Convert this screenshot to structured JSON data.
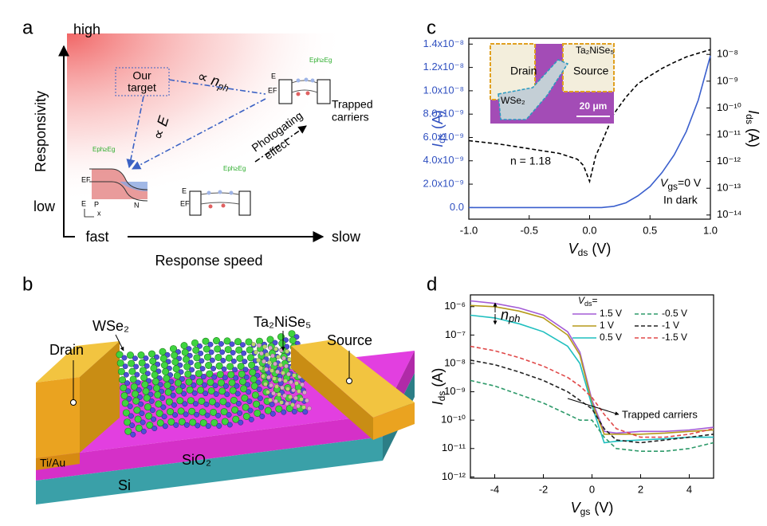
{
  "panel_a": {
    "label": "a",
    "y_high": "high",
    "y_low": "low",
    "y_title": "Responsivity",
    "x_fast": "fast",
    "x_slow": "slow",
    "x_title": "Response speed",
    "target": [
      "Our",
      "target"
    ],
    "n_ph": {
      "pre": "∝ ",
      "symbol": "n",
      "sub": "ph"
    },
    "field": {
      "pre": "∝ ",
      "symbol": "E"
    },
    "photogating": [
      "Photogating",
      "effect"
    ],
    "trapped": [
      "Trapped",
      "carriers"
    ],
    "photon": [
      "Eph≥Eg",
      "Eph≥Eg",
      "Eph≥Eg"
    ],
    "band_E": [
      "E",
      "E",
      "E"
    ],
    "band_EF": [
      "EF",
      "EF",
      "EF"
    ],
    "pn": [
      "P",
      "N"
    ],
    "mini_x": "x"
  },
  "panel_b": {
    "label": "b",
    "drain": "Drain",
    "source": "Source",
    "wse2": "WSe₂",
    "tns": "Ta₂NiSe₅",
    "electrode": "Ti/Au",
    "oxide": "SiO₂",
    "substrate": "Si"
  },
  "chart_data": [
    {
      "type": "line",
      "panel": "c",
      "xlabel": {
        "symbol": "V",
        "sub": "ds",
        "unit": " (V)"
      },
      "ylabel": {
        "symbol": "I",
        "sub": "ds",
        "unit": " (A)"
      },
      "ycolor": "#3050c0",
      "y2label": {
        "symbol": "I",
        "sub": "ds",
        "unit": " (A)"
      },
      "x": [
        -1,
        -0.75,
        -0.5,
        -0.25,
        -0.1,
        -0.05,
        0,
        0.05,
        0.1,
        0.2,
        0.3,
        0.4,
        0.5,
        0.6,
        0.7,
        0.8,
        0.9,
        1.0
      ],
      "xlim": [
        -1,
        1
      ],
      "xticks": [
        {
          "value": -1,
          "label": "-1.0"
        },
        -0.5,
        {
          "value": 0,
          "label": "0.0"
        },
        0.5,
        {
          "value": 1,
          "label": "1.0"
        }
      ],
      "ylim": [
        -1e-09,
        1.45e-08
      ],
      "yticks": [
        {
          "value": 0,
          "label": "0.0"
        },
        {
          "value": 2e-09,
          "label": "2.0x10⁻⁹"
        },
        {
          "value": 4e-09,
          "label": "4.0x10⁻⁹"
        },
        {
          "value": 6e-09,
          "label": "6.0x10⁻⁹"
        },
        {
          "value": 8e-09,
          "label": "8.0x10⁻⁹"
        },
        {
          "value": 1e-08,
          "label": "1.0x10⁻⁸"
        },
        {
          "value": 1.2e-08,
          "label": "1.2x10⁻⁸"
        },
        {
          "value": 1.4e-08,
          "label": "1.4x10⁻⁸"
        }
      ],
      "y2lim": [
        7e-15,
        4e-08
      ],
      "y2scale": "log",
      "y2ticks": [
        {
          "value": 1e-14,
          "label": "10⁻¹⁴"
        },
        {
          "value": 1e-13,
          "label": "10⁻¹³"
        },
        {
          "value": 1e-12,
          "label": "10⁻¹²"
        },
        {
          "value": 1e-11,
          "label": "10⁻¹¹"
        },
        {
          "value": 1e-10,
          "label": "10⁻¹⁰"
        },
        {
          "value": 1e-09,
          "label": "10⁻⁹"
        },
        {
          "value": 1e-08,
          "label": "10⁻⁸"
        }
      ],
      "series": [
        {
          "color": "#3a5fcd",
          "dash": false,
          "values": [
            0,
            0,
            0,
            0,
            0,
            0,
            0,
            0,
            0,
            1e-10,
            4e-10,
            1e-09,
            1.8e-09,
            3e-09,
            4.5e-09,
            6.5e-09,
            9.2e-09,
            1.3e-08
          ]
        },
        {
          "color": "#000000",
          "dash": true,
          "axis": "y2",
          "values": [
            6e-12,
            4.5e-12,
            3e-12,
            2e-12,
            1.2e-12,
            7e-13,
            1.8e-13,
            1.6e-12,
            5e-12,
            6e-11,
            2.5e-10,
            8e-10,
            1.6e-09,
            3e-09,
            5e-09,
            8e-09,
            1.1e-08,
            1.5e-08
          ]
        }
      ],
      "annotations": [
        "n = 1.18",
        "In dark"
      ],
      "condition": {
        "symbol": "V",
        "sub": "gs",
        "rest": "=0 V"
      },
      "inset": {
        "drain": "Drain",
        "source": "Source",
        "material": "Ta₂NiSe₅",
        "flake": "WSe₂",
        "scale": "20 μm"
      }
    },
    {
      "type": "line",
      "panel": "d",
      "xlabel": {
        "symbol": "V",
        "sub": "gs",
        "unit": " (V)"
      },
      "ylabel": {
        "symbol": "I",
        "sub": "ds",
        "unit": " (A)"
      },
      "x": [
        -5,
        -4,
        -3,
        -2,
        -1,
        -0.5,
        0,
        0.5,
        1,
        2,
        3,
        4,
        5
      ],
      "xlim": [
        -5,
        5
      ],
      "xticks": [
        -4,
        -2,
        0,
        2,
        4
      ],
      "ylim": [
        9e-13,
        2.6e-06
      ],
      "yscale": "log",
      "yticks": [
        {
          "value": 1e-12,
          "label": "10⁻¹²"
        },
        {
          "value": 1e-11,
          "label": "10⁻¹¹"
        },
        {
          "value": 1e-10,
          "label": "10⁻¹⁰"
        },
        {
          "value": 1e-09,
          "label": "10⁻⁹"
        },
        {
          "value": 1e-08,
          "label": "10⁻⁸"
        },
        {
          "value": 1e-07,
          "label": "10⁻⁷"
        },
        {
          "value": 1e-06,
          "label": "10⁻⁶"
        }
      ],
      "legend_title": {
        "symbol": "V",
        "sub": "ds",
        "rest": "="
      },
      "legend": "top-right",
      "series": [
        {
          "name": "1.5 V",
          "color": "#a35bd6",
          "dash": false,
          "values": [
            1.6e-06,
            1.3e-06,
            9e-07,
            5e-07,
            1.3e-07,
            2.5e-08,
            5e-10,
            4e-11,
            3.5e-11,
            4e-11,
            4e-11,
            4.5e-11,
            5.6e-11
          ]
        },
        {
          "name": "1 V",
          "color": "#b59a1a",
          "dash": false,
          "values": [
            1.1e-06,
            1e-06,
            7e-07,
            4e-07,
            1e-07,
            2e-08,
            4e-10,
            3.2e-11,
            3.2e-11,
            3.2e-11,
            3.5e-11,
            4e-11,
            4.5e-11
          ]
        },
        {
          "name": "0.5 V",
          "color": "#1fbfbf",
          "dash": false,
          "values": [
            5e-07,
            4e-07,
            2.5e-07,
            1.3e-07,
            4e-08,
            1e-08,
            3.2e-10,
            1.6e-11,
            1.8e-11,
            2e-11,
            2.2e-11,
            2.5e-11,
            2.5e-11
          ]
        },
        {
          "name": "-0.5 V",
          "color": "#2e9a6a",
          "dash": true,
          "values": [
            2.5e-09,
            1.6e-09,
            8e-10,
            4e-10,
            1.6e-10,
            1e-10,
            1e-10,
            2.5e-11,
            1e-11,
            8e-12,
            8e-12,
            1e-11,
            1.6e-11
          ]
        },
        {
          "name": "-1 V",
          "color": "#222222",
          "dash": true,
          "values": [
            1.3e-08,
            9e-09,
            5e-09,
            2.5e-09,
            1e-09,
            5e-10,
            2.5e-10,
            5e-11,
            2e-11,
            1.6e-11,
            2e-11,
            2.5e-11,
            3.2e-11
          ]
        },
        {
          "name": "-1.5 V",
          "color": "#e04848",
          "dash": true,
          "values": [
            4e-08,
            2.8e-08,
            1.6e-08,
            8e-09,
            3.2e-09,
            1.6e-09,
            6.3e-10,
            1.6e-10,
            5e-11,
            2.5e-11,
            2.5e-11,
            3.2e-11,
            5e-11
          ]
        }
      ],
      "annotations": [
        "Trapped carriers"
      ],
      "n_ph": {
        "symbol": "n",
        "sub": "ph"
      }
    }
  ]
}
